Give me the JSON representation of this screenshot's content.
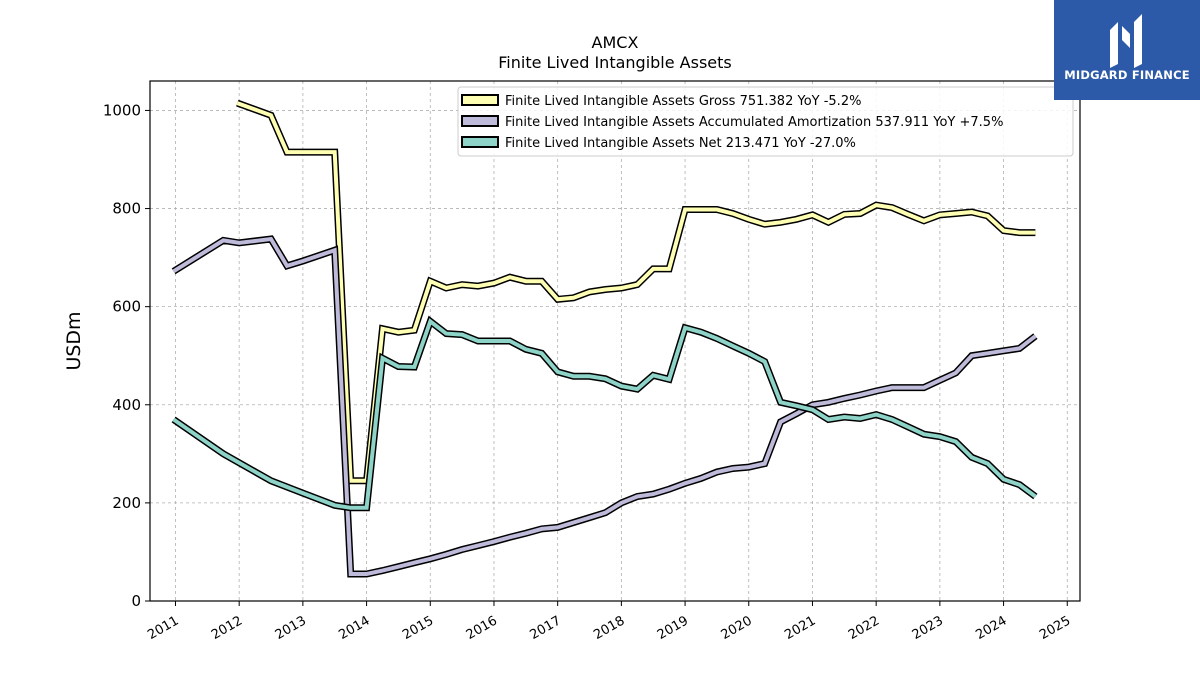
{
  "chart_data": {
    "type": "line",
    "title": "AMCX",
    "subtitle": "Finite Lived Intangible Assets",
    "ylabel": "USDm",
    "xlabel": "",
    "ylim": [
      0,
      1060
    ],
    "yticks": [
      0,
      200,
      400,
      600,
      800,
      1000
    ],
    "xlim": [
      2010.6,
      2025.2
    ],
    "xticks": [
      "2011",
      "2012",
      "2013",
      "2014",
      "2015",
      "2016",
      "2017",
      "2018",
      "2019",
      "2020",
      "2021",
      "2022",
      "2023",
      "2024",
      "2025"
    ],
    "grid": true,
    "legend_position": "top-right",
    "series": [
      {
        "name": "Finite Lived Intangible Assets Gross  751.382 YoY -5.2%",
        "color": "#ffffb3",
        "points": [
          [
            2011.97,
            1015
          ],
          [
            2012.5,
            990
          ],
          [
            2012.75,
            915
          ],
          [
            2013.0,
            915
          ],
          [
            2013.5,
            915
          ],
          [
            2013.75,
            245
          ],
          [
            2014.0,
            245
          ],
          [
            2014.25,
            555
          ],
          [
            2014.5,
            548
          ],
          [
            2014.75,
            552
          ],
          [
            2015.0,
            652
          ],
          [
            2015.25,
            638
          ],
          [
            2015.5,
            645
          ],
          [
            2015.75,
            642
          ],
          [
            2016.0,
            648
          ],
          [
            2016.25,
            660
          ],
          [
            2016.5,
            652
          ],
          [
            2016.75,
            652
          ],
          [
            2017.0,
            615
          ],
          [
            2017.25,
            618
          ],
          [
            2017.5,
            630
          ],
          [
            2017.75,
            635
          ],
          [
            2018.0,
            638
          ],
          [
            2018.25,
            645
          ],
          [
            2018.5,
            677
          ],
          [
            2018.75,
            677
          ],
          [
            2019.0,
            798
          ],
          [
            2019.25,
            798
          ],
          [
            2019.5,
            798
          ],
          [
            2019.75,
            790
          ],
          [
            2020.0,
            778
          ],
          [
            2020.25,
            768
          ],
          [
            2020.5,
            772
          ],
          [
            2020.75,
            778
          ],
          [
            2021.0,
            787
          ],
          [
            2021.25,
            772
          ],
          [
            2021.5,
            788
          ],
          [
            2021.75,
            790
          ],
          [
            2022.0,
            807
          ],
          [
            2022.25,
            802
          ],
          [
            2022.5,
            788
          ],
          [
            2022.75,
            775
          ],
          [
            2023.0,
            787
          ],
          [
            2023.25,
            790
          ],
          [
            2023.5,
            793
          ],
          [
            2023.75,
            785
          ],
          [
            2024.0,
            755
          ],
          [
            2024.25,
            751
          ],
          [
            2024.5,
            751
          ]
        ]
      },
      {
        "name": "Finite Lived Intangible Assets Accumulated Amortization  537.911 YoY +7.5%",
        "color": "#bebada",
        "points": [
          [
            2010.97,
            672
          ],
          [
            2011.75,
            735
          ],
          [
            2012.0,
            730
          ],
          [
            2012.5,
            738
          ],
          [
            2012.75,
            683
          ],
          [
            2013.0,
            693
          ],
          [
            2013.5,
            715
          ],
          [
            2013.75,
            55
          ],
          [
            2014.0,
            55
          ],
          [
            2014.25,
            62
          ],
          [
            2014.5,
            70
          ],
          [
            2014.75,
            78
          ],
          [
            2015.0,
            86
          ],
          [
            2015.25,
            95
          ],
          [
            2015.5,
            105
          ],
          [
            2015.75,
            113
          ],
          [
            2016.0,
            121
          ],
          [
            2016.25,
            130
          ],
          [
            2016.5,
            138
          ],
          [
            2016.75,
            147
          ],
          [
            2017.0,
            150
          ],
          [
            2017.25,
            160
          ],
          [
            2017.5,
            170
          ],
          [
            2017.75,
            180
          ],
          [
            2018.0,
            200
          ],
          [
            2018.25,
            213
          ],
          [
            2018.5,
            218
          ],
          [
            2018.75,
            228
          ],
          [
            2019.0,
            240
          ],
          [
            2019.25,
            250
          ],
          [
            2019.5,
            263
          ],
          [
            2019.75,
            270
          ],
          [
            2020.0,
            273
          ],
          [
            2020.25,
            280
          ],
          [
            2020.5,
            365
          ],
          [
            2020.75,
            382
          ],
          [
            2021.0,
            400
          ],
          [
            2021.25,
            405
          ],
          [
            2021.5,
            413
          ],
          [
            2021.75,
            420
          ],
          [
            2022.0,
            428
          ],
          [
            2022.25,
            435
          ],
          [
            2022.5,
            435
          ],
          [
            2022.75,
            435
          ],
          [
            2023.0,
            450
          ],
          [
            2023.25,
            465
          ],
          [
            2023.5,
            500
          ],
          [
            2023.75,
            505
          ],
          [
            2024.0,
            510
          ],
          [
            2024.25,
            515
          ],
          [
            2024.5,
            540
          ]
        ]
      },
      {
        "name": "Finite Lived Intangible Assets Net  213.471 YoY -27.0%",
        "color": "#8dd3c7",
        "points": [
          [
            2010.97,
            370
          ],
          [
            2011.75,
            300
          ],
          [
            2012.5,
            245
          ],
          [
            2013.0,
            220
          ],
          [
            2013.5,
            195
          ],
          [
            2013.75,
            190
          ],
          [
            2014.0,
            190
          ],
          [
            2014.25,
            495
          ],
          [
            2014.5,
            478
          ],
          [
            2014.75,
            477
          ],
          [
            2015.0,
            570
          ],
          [
            2015.25,
            545
          ],
          [
            2015.5,
            543
          ],
          [
            2015.75,
            530
          ],
          [
            2016.0,
            530
          ],
          [
            2016.25,
            530
          ],
          [
            2016.5,
            513
          ],
          [
            2016.75,
            505
          ],
          [
            2017.0,
            467
          ],
          [
            2017.25,
            458
          ],
          [
            2017.5,
            458
          ],
          [
            2017.75,
            453
          ],
          [
            2018.0,
            438
          ],
          [
            2018.25,
            432
          ],
          [
            2018.5,
            460
          ],
          [
            2018.75,
            452
          ],
          [
            2019.0,
            557
          ],
          [
            2019.25,
            548
          ],
          [
            2019.5,
            535
          ],
          [
            2019.75,
            520
          ],
          [
            2020.0,
            505
          ],
          [
            2020.25,
            488
          ],
          [
            2020.5,
            405
          ],
          [
            2020.75,
            398
          ],
          [
            2021.0,
            390
          ],
          [
            2021.25,
            370
          ],
          [
            2021.5,
            375
          ],
          [
            2021.75,
            372
          ],
          [
            2022.0,
            380
          ],
          [
            2022.25,
            370
          ],
          [
            2022.5,
            355
          ],
          [
            2022.75,
            340
          ],
          [
            2023.0,
            335
          ],
          [
            2023.25,
            325
          ],
          [
            2023.5,
            293
          ],
          [
            2023.75,
            280
          ],
          [
            2024.0,
            248
          ],
          [
            2024.25,
            237
          ],
          [
            2024.5,
            213
          ]
        ]
      }
    ]
  },
  "logo": {
    "text": "MIDGARD FINANCE",
    "background": "#2d5aa8"
  }
}
